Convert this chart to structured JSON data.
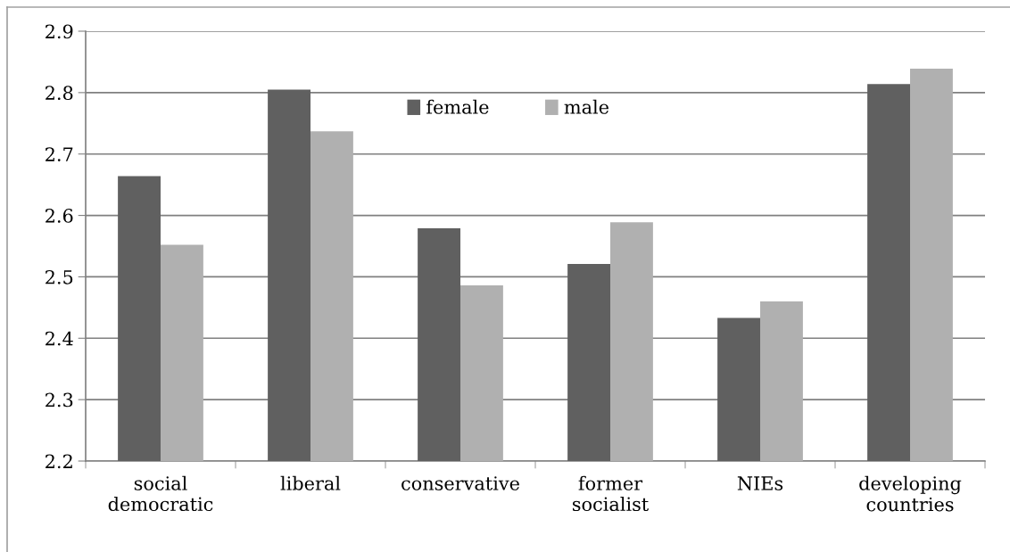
{
  "chart_data": {
    "type": "bar",
    "categories": [
      "social\ndemocratic",
      "liberal",
      "conservative",
      "former\nsocialist",
      "NIEs",
      "developing\ncountries"
    ],
    "series": [
      {
        "name": "female",
        "color": "#606060",
        "values": [
          2.664,
          2.805,
          2.579,
          2.521,
          2.433,
          2.814
        ]
      },
      {
        "name": "male",
        "color": "#b0b0b0",
        "values": [
          2.552,
          2.737,
          2.486,
          2.589,
          2.46,
          2.839
        ]
      }
    ],
    "ylim": [
      2.2,
      2.9
    ],
    "yticks": [
      2.2,
      2.3,
      2.4,
      2.5,
      2.6,
      2.7,
      2.8,
      2.9
    ],
    "grid": "y",
    "legend": "top"
  }
}
